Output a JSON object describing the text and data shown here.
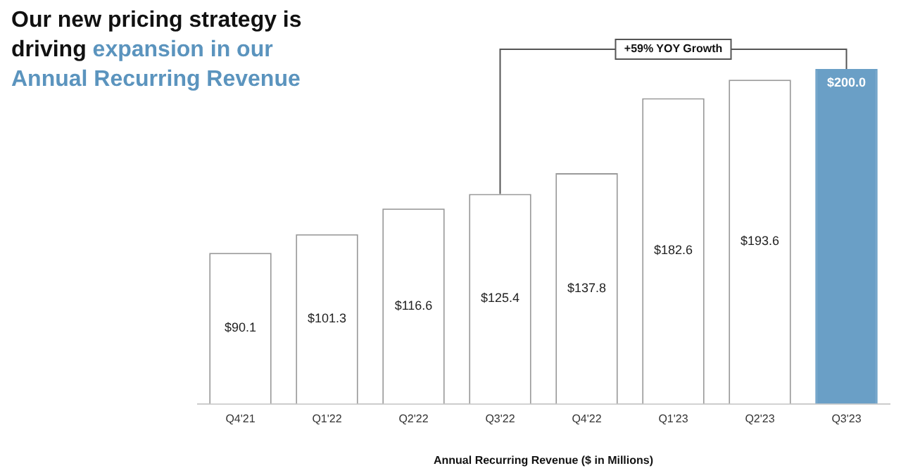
{
  "chart_data": {
    "type": "bar",
    "title": "Our new pricing strategy is driving",
    "subtitle": "expansion in our Annual Recurring Revenue",
    "xlabel": "Annual Recurring Revenue ($ in Millions)",
    "categories": [
      "Q4'21",
      "Q1'22",
      "Q2'22",
      "Q3'22",
      "Q4'22",
      "Q1'23",
      "Q2'23",
      "Q3'23"
    ],
    "values": [
      90.1,
      101.3,
      116.6,
      125.4,
      137.8,
      182.6,
      193.6,
      200.0
    ],
    "colors": [
      "#ffffff",
      "#ffffff",
      "#ffffff",
      "#ffffff",
      "#ffffff",
      "#ffffff",
      "#ffffff",
      "#6a9fc6"
    ],
    "value_labels": [
      "$90.1",
      "$101.3",
      "$116.6",
      "$125.4",
      "$137.8",
      "$182.6",
      "$193.6",
      "$200.0"
    ],
    "grid": false,
    "legend": false,
    "annotations": [
      "+59% YOY Growth"
    ]
  }
}
